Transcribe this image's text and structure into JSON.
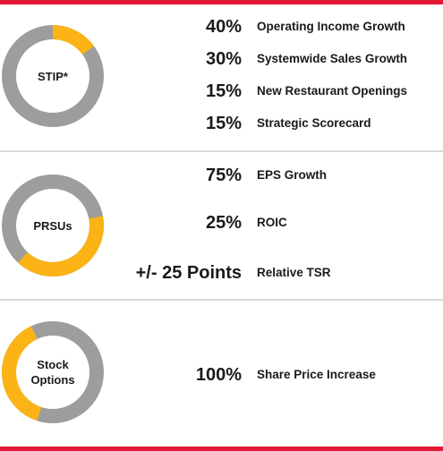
{
  "colors": {
    "accent": "#fbb315",
    "base": "#9d9d9d",
    "frame": "#e31837",
    "divider": "#d9d9d9",
    "text": "#1a1a1a"
  },
  "chart_data": [
    {
      "type": "pie",
      "center_label": "STIP*",
      "highlight_fraction": 0.15,
      "highlight_start_fraction": 0.0,
      "rows": [
        {
          "value": "40%",
          "label": "Operating Income Growth"
        },
        {
          "value": "30%",
          "label": "Systemwide Sales Growth"
        },
        {
          "value": "15%",
          "label": "New Restaurant Openings"
        },
        {
          "value": "15%",
          "label": "Strategic Scorecard"
        }
      ]
    },
    {
      "type": "pie",
      "center_label": "PRSUs",
      "highlight_fraction": 0.4,
      "highlight_start_fraction": 0.22,
      "rows": [
        {
          "value": "75%",
          "label": "EPS Growth"
        },
        {
          "value": "25%",
          "label": "ROIC"
        },
        {
          "value": "+/- 25 Points",
          "label": "Relative TSR"
        }
      ]
    },
    {
      "type": "pie",
      "center_label": "Stock\nOptions",
      "highlight_fraction": 0.38,
      "highlight_start_fraction": 0.55,
      "rows": [
        {
          "value": "100%",
          "label": "Share Price Increase"
        }
      ]
    }
  ]
}
